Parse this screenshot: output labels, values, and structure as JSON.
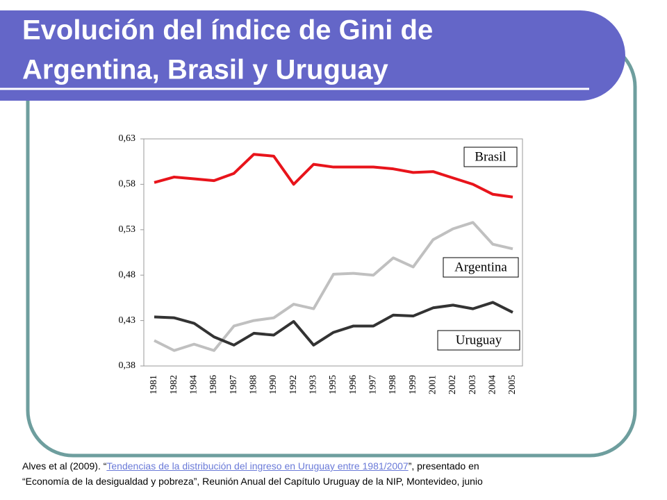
{
  "slide": {
    "title_lines": [
      "Evolución del índice de Gini de",
      "Argentina, Brasil y Uruguay"
    ]
  },
  "footer": {
    "prefix": "Alves et al (2009). “",
    "link": "Tendencias de la distribución del ingreso en Uruguay entre 1981/2007",
    "suffix": "”, presentado en",
    "line2": "“Economía de la desigualdad y pobreza”, Reunión Anual del Capítulo Uruguay de la  NIP, Montevideo, junio"
  },
  "chart_data": {
    "type": "line",
    "categories": [
      "1981",
      "1982",
      "1984",
      "1986",
      "1987",
      "1988",
      "1990",
      "1992",
      "1993",
      "1995",
      "1996",
      "1997",
      "1998",
      "1999",
      "2001",
      "2002",
      "2003",
      "2004",
      "2005"
    ],
    "series": [
      {
        "name": "Brasil",
        "color": "#e8141b",
        "values": [
          0.582,
          0.588,
          0.586,
          0.584,
          0.592,
          0.613,
          0.611,
          0.58,
          0.602,
          0.599,
          0.599,
          0.599,
          0.597,
          0.593,
          0.594,
          0.587,
          0.58,
          0.569,
          0.566
        ]
      },
      {
        "name": "Argentina",
        "color": "#c0c0c0",
        "values": [
          0.408,
          0.397,
          0.404,
          0.397,
          0.424,
          0.43,
          0.433,
          0.448,
          0.443,
          0.481,
          0.482,
          0.48,
          0.499,
          0.489,
          0.519,
          0.531,
          0.538,
          0.514,
          0.509
        ]
      },
      {
        "name": "Uruguay",
        "color": "#333333",
        "values": [
          0.434,
          0.433,
          0.427,
          0.412,
          0.403,
          0.416,
          0.414,
          0.429,
          0.403,
          0.417,
          0.424,
          0.424,
          0.436,
          0.435,
          0.444,
          0.447,
          0.443,
          0.45,
          0.439
        ]
      }
    ],
    "ylim": [
      0.38,
      0.63
    ],
    "yticks": [
      {
        "value": 0.38,
        "label": "0,38"
      },
      {
        "value": 0.43,
        "label": "0,43"
      },
      {
        "value": 0.48,
        "label": "0,48"
      },
      {
        "value": 0.53,
        "label": "0,53"
      },
      {
        "value": 0.58,
        "label": "0,58"
      },
      {
        "value": 0.63,
        "label": "0,63"
      }
    ],
    "grid": false
  }
}
